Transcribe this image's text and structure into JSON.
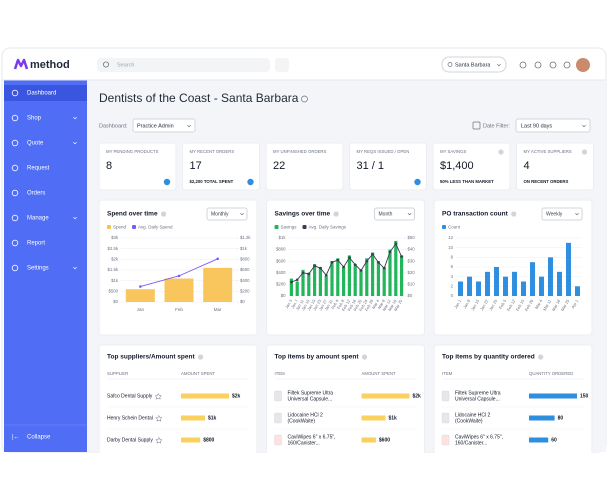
{
  "app": {
    "logo": "method",
    "search_placeholder": "Search",
    "location": "Santa Barbara"
  },
  "sidebar": {
    "items": [
      "Dashboard",
      "Shop",
      "Quote",
      "Request",
      "Orders",
      "Manage",
      "Report",
      "Settings"
    ],
    "collapse": "Collapse"
  },
  "header": {
    "title": "Dentists of the Coast - Santa Barbara",
    "dashboard_label": "Dashboard:",
    "dashboard_value": "Practice Admin",
    "date_filter_label": "Date Filter:",
    "date_filter_value": "Last 90 days"
  },
  "kpis": [
    {
      "label": "MY PENDING PRODUCTS",
      "value": 8
    },
    {
      "label": "MY RECENT ORDERS",
      "value": 17,
      "note": "$2,200 TOTAL SPENT"
    },
    {
      "label": "MY UNFINISHED ORDERS",
      "value": 22
    },
    {
      "label": "MY REQS ISSUED / OPEN",
      "value": "31 / 1"
    },
    {
      "label": "MY SAVINGS",
      "value": "$1,400",
      "note": "50% LESS THAN MARKET"
    },
    {
      "label": "MY ACTIVE SUPPLIERS",
      "value": 4,
      "note": "ON RECENT ORDERS"
    }
  ],
  "charts": [
    {
      "type": "bar",
      "title": "Spend over time",
      "period": "Monthly",
      "categories": [
        "Jan",
        "Feb",
        "Mar"
      ],
      "series": [
        {
          "name": "Spend",
          "color": "#f8c04c",
          "values": [
            600,
            1100,
            1600
          ]
        },
        {
          "name": "Avg. Daily Spend",
          "color": "#7c5cf0",
          "axis": "y2",
          "type": "line",
          "values": [
            290,
            490,
            810
          ]
        }
      ],
      "ylim": [
        0,
        3000
      ],
      "yticks": [
        {
          "value": 0,
          "label": "$0"
        },
        {
          "value": 500,
          "label": "$500"
        },
        {
          "value": 1000,
          "label": "$1k"
        },
        {
          "value": 1500,
          "label": "$1.5k"
        },
        {
          "value": 2000,
          "label": "$2k"
        },
        {
          "value": 2500,
          "label": "$2.5k"
        },
        {
          "value": 3000,
          "label": "$3k"
        }
      ],
      "y2lim": [
        0,
        1200
      ],
      "y2ticks": [
        {
          "value": 0,
          "label": "$0"
        },
        {
          "value": 200,
          "label": "$200"
        },
        {
          "value": 400,
          "label": "$400"
        },
        {
          "value": 600,
          "label": "$600"
        },
        {
          "value": 800,
          "label": "$800"
        },
        {
          "value": 1000,
          "label": "$1k"
        },
        {
          "value": 1200,
          "label": "$1.2k"
        }
      ]
    },
    {
      "type": "bar",
      "title": "Savings over time",
      "period": "Month",
      "categories": [
        "Jan 3",
        "Jan 7",
        "Jan 11",
        "Jan 15",
        "Jan 19",
        "Jan 23",
        "Jan 27",
        "Jan 31",
        "Feb 4",
        "Feb 8",
        "Feb 12",
        "Feb 16",
        "Feb 20",
        "Feb 24",
        "Feb 28",
        "Mar 4",
        "Mar 8",
        "Mar 12",
        "Mar 16",
        "Mar 20"
      ],
      "series": [
        {
          "name": "Savings",
          "color": "#22b55a",
          "values": [
            300,
            250,
            450,
            400,
            550,
            500,
            350,
            600,
            650,
            500,
            700,
            550,
            450,
            650,
            750,
            600,
            500,
            800,
            950,
            700
          ]
        },
        {
          "name": "Avg. Daily Savings",
          "color": "#3b3b52",
          "axis": "y2",
          "type": "line",
          "values": [
            12,
            14,
            20,
            19,
            26,
            24,
            18,
            29,
            31,
            25,
            33,
            27,
            22,
            30,
            36,
            29,
            24,
            38,
            45,
            34
          ]
        }
      ],
      "ylim": [
        0,
        1000
      ],
      "yticks": [
        {
          "value": 0,
          "label": "$0"
        },
        {
          "value": 200,
          "label": "$200"
        },
        {
          "value": 400,
          "label": "$400"
        },
        {
          "value": 600,
          "label": "$600"
        },
        {
          "value": 800,
          "label": "$800"
        },
        {
          "value": 1000,
          "label": "$1k"
        }
      ],
      "y2lim": [
        0,
        50
      ],
      "y2ticks": [
        {
          "value": 0,
          "label": "$0"
        },
        {
          "value": 10,
          "label": "$10"
        },
        {
          "value": 20,
          "label": "$20"
        },
        {
          "value": 30,
          "label": "$30"
        },
        {
          "value": 40,
          "label": "$40"
        },
        {
          "value": 50,
          "label": "$50"
        }
      ]
    },
    {
      "type": "bar",
      "title": "PO transaction count",
      "period": "Weekly",
      "categories": [
        "Jan 1",
        "Jan 8",
        "Jan 15",
        "Jan 22",
        "Jan 29",
        "Feb 5",
        "Feb 12",
        "Feb 19",
        "Feb 26",
        "Mar 4",
        "Mar 11",
        "Mar 18",
        "Mar 25",
        "Apr 1"
      ],
      "series": [
        {
          "name": "Count",
          "color": "#2e8ee0",
          "values": [
            3,
            4,
            3,
            5,
            6,
            4,
            5,
            3,
            7,
            4,
            8,
            5,
            11,
            2
          ]
        }
      ],
      "ylim": [
        0,
        12
      ],
      "yticks": [
        0,
        2,
        4,
        6,
        8,
        10,
        12
      ]
    }
  ],
  "tables": [
    {
      "title": "Top suppliers/Amount spent",
      "columns": [
        "SUPPLIER",
        "AMOUNT SPENT"
      ],
      "color": "#f9d15c",
      "rows": [
        {
          "name_lines": [
            "Safco Dental Supply"
          ],
          "value": 2000,
          "value_label": "$2k"
        },
        {
          "name_lines": [
            "Henry Schein Dental"
          ],
          "value": 1000,
          "value_label": "$1k"
        },
        {
          "name_lines": [
            "Darby Dental Supply"
          ],
          "value": 800,
          "value_label": "$800"
        }
      ]
    },
    {
      "title": "Top items by amount spent",
      "columns": [
        "ITEM",
        "AMOUNT SPENT"
      ],
      "color": "#f9d15c",
      "rows": [
        {
          "name_lines": [
            "Filtek Supreme Ultra",
            "Universal Capsule..."
          ],
          "value": 2000,
          "value_label": "$2k"
        },
        {
          "name_lines": [
            "Lidocaine HCl 2",
            "(CookWaite)"
          ],
          "value": 1000,
          "value_label": "$1k"
        },
        {
          "name_lines": [
            "CaviWipes 6\" x 6.75\",",
            "160/Canister..."
          ],
          "value": 600,
          "value_label": "$600"
        }
      ]
    },
    {
      "title": "Top items by quantity ordered",
      "columns": [
        "ITEM",
        "QUANTITY ORDERED"
      ],
      "color": "#2e8ee0",
      "rows": [
        {
          "name_lines": [
            "Filtek Supreme Ultra",
            "Universal Capsule..."
          ],
          "value": 150
        },
        {
          "name_lines": [
            "Lidocaine HCl 2",
            "(CookWaite)"
          ],
          "value": 80
        },
        {
          "name_lines": [
            "CaviWipes 6\" x 6.75\",",
            "160/Canister..."
          ],
          "value": 60
        }
      ]
    }
  ]
}
